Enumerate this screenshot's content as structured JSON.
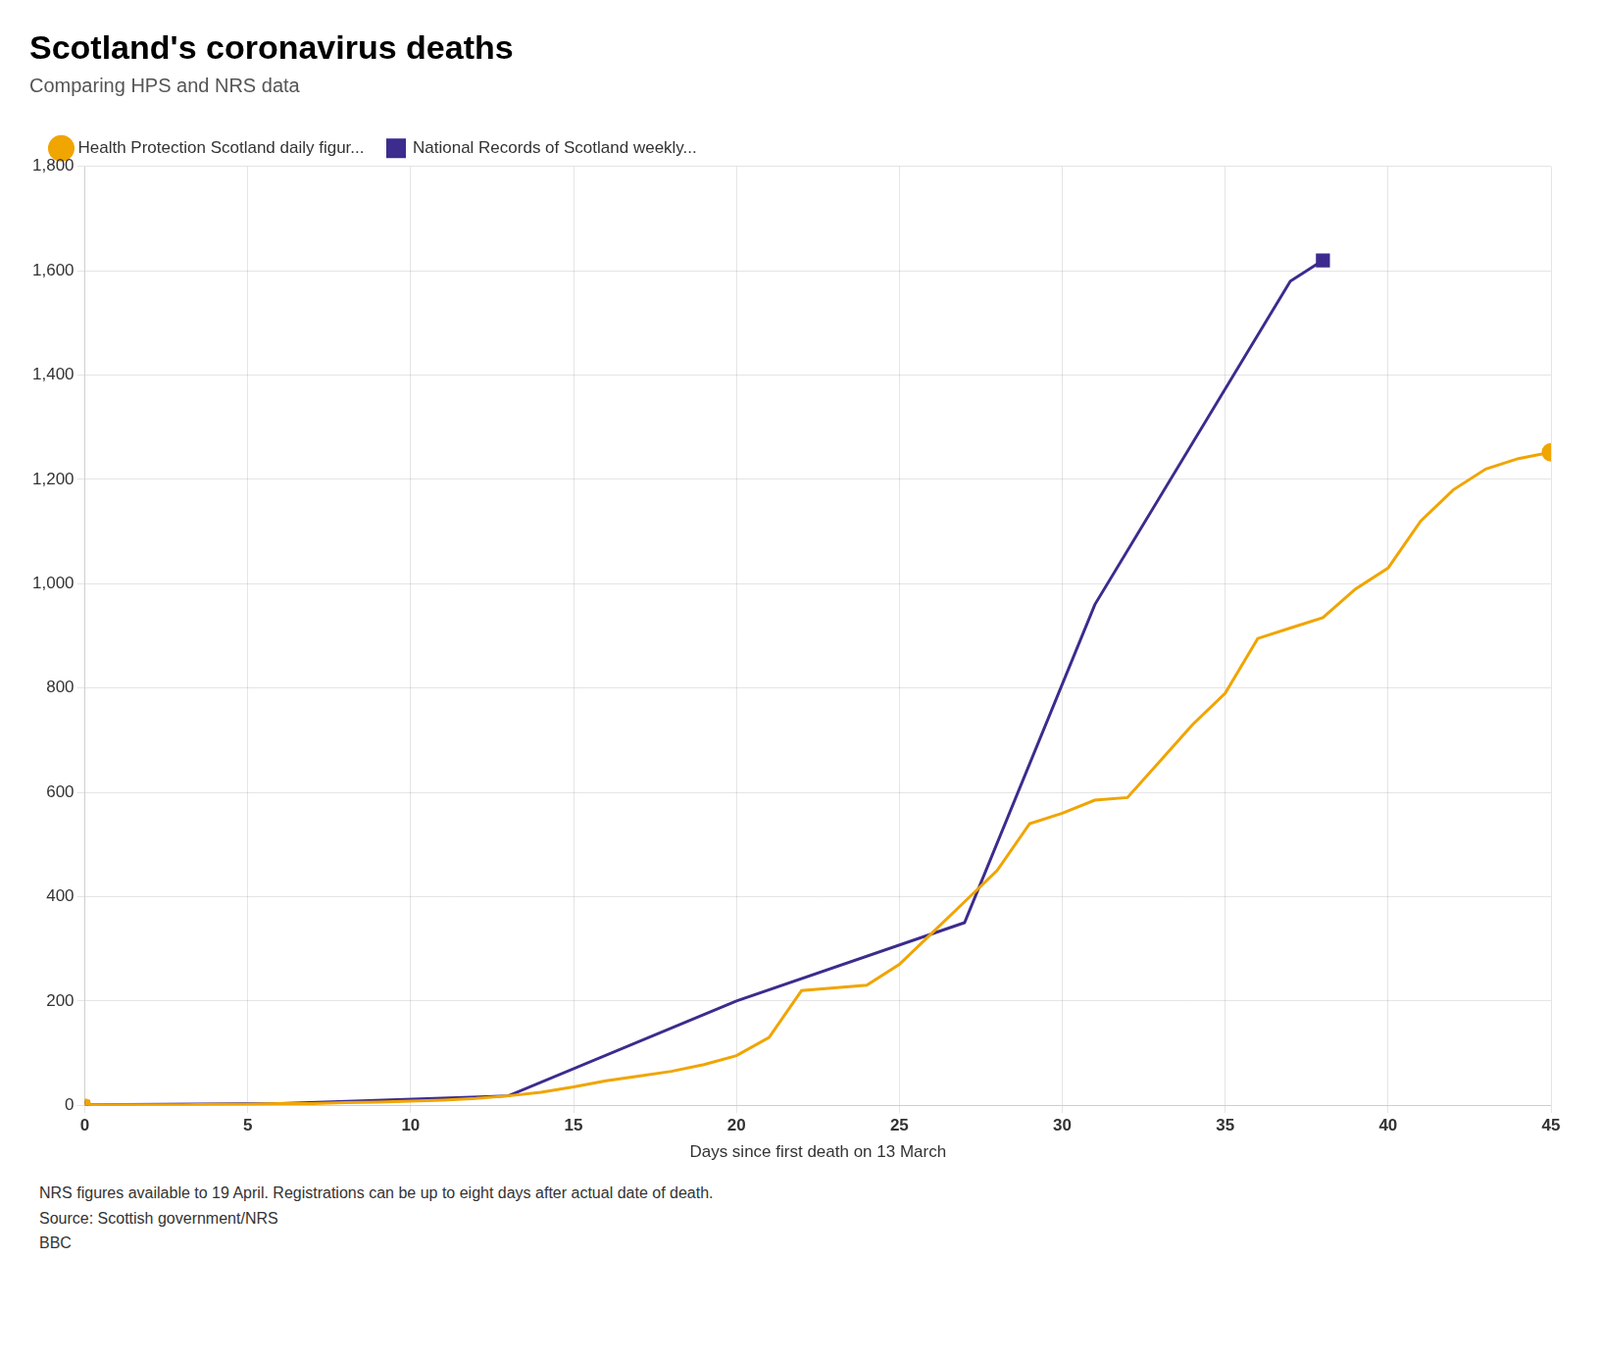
{
  "chart_data": {
    "type": "line",
    "title": "Scotland's coronavirus deaths",
    "subtitle": "Comparing HPS and NRS data",
    "xlabel": "Days since first death on 13 March",
    "annotations": [
      "NRS figures available to 19 April. Registrations can be up to eight days after actual date of death.",
      "Source: Scottish government/NRS",
      "BBC"
    ],
    "series": [
      {
        "name": "Health Protection Scotland daily figur...",
        "color": "#f0a500",
        "marker": "circle",
        "x": [
          0,
          1,
          2,
          3,
          4,
          5,
          6,
          7,
          8,
          9,
          10,
          11,
          12,
          13,
          14,
          15,
          16,
          17,
          18,
          19,
          20,
          21,
          22,
          23,
          24,
          25,
          26,
          27,
          28,
          29,
          30,
          31,
          32,
          33,
          34,
          35,
          36,
          37,
          38,
          39,
          40,
          41,
          42,
          43,
          44,
          45
        ],
        "values": [
          1,
          1,
          1,
          1,
          2,
          2,
          3,
          3,
          5,
          6,
          8,
          10,
          13,
          18,
          25,
          35,
          47,
          56,
          65,
          78,
          95,
          130,
          220,
          225,
          230,
          270,
          330,
          390,
          450,
          540,
          560,
          585,
          590,
          660,
          730,
          790,
          895,
          915,
          935,
          990,
          1030,
          1120,
          1180,
          1220,
          1240,
          1252
        ]
      },
      {
        "name": "National Records of Scotland weekly...",
        "color": "#3d2b8e",
        "marker": "square",
        "x": [
          0,
          6,
          13,
          20,
          27,
          31,
          37,
          38
        ],
        "values": [
          1,
          3,
          18,
          200,
          350,
          960,
          1580,
          1620
        ]
      }
    ],
    "xlim": [
      0,
      45
    ],
    "xticks": [
      0,
      5,
      10,
      15,
      20,
      25,
      30,
      35,
      40,
      45
    ],
    "ylim": [
      0,
      1800
    ],
    "yticks": [
      0,
      200,
      400,
      600,
      800,
      {
        "value": 1000,
        "label": "1,000"
      },
      {
        "value": 1200,
        "label": "1,200"
      },
      {
        "value": 1400,
        "label": "1,400"
      },
      {
        "value": 1600,
        "label": "1,600"
      },
      {
        "value": 1800,
        "label": "1,800"
      }
    ],
    "grid": true,
    "legend": "top"
  }
}
